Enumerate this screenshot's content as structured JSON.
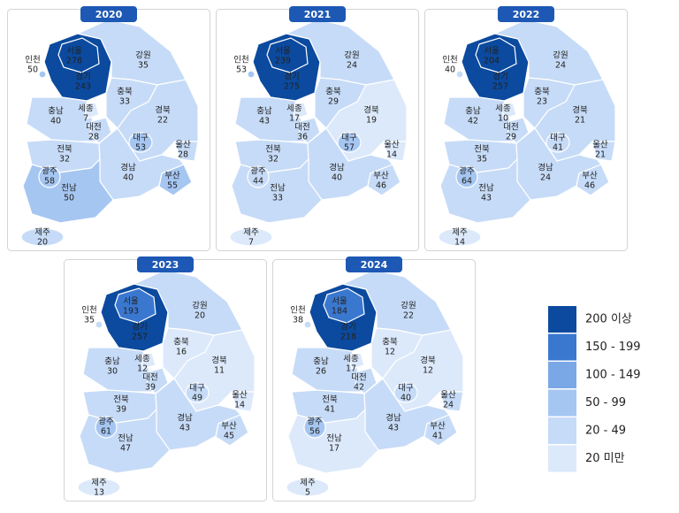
{
  "maps": [
    {
      "year": "2020",
      "regions": [
        {
          "name": "서울",
          "value": 278
        },
        {
          "name": "경기",
          "value": 243
        },
        {
          "name": "인천",
          "value": 50
        },
        {
          "name": "강원",
          "value": 35
        },
        {
          "name": "충북",
          "value": 33
        },
        {
          "name": "충남",
          "value": 40
        },
        {
          "name": "세종",
          "value": 7
        },
        {
          "name": "대전",
          "value": 28
        },
        {
          "name": "경북",
          "value": 22
        },
        {
          "name": "대구",
          "value": 53
        },
        {
          "name": "울산",
          "value": 28
        },
        {
          "name": "전북",
          "value": 32
        },
        {
          "name": "경남",
          "value": 40
        },
        {
          "name": "부산",
          "value": 55
        },
        {
          "name": "광주",
          "value": 58
        },
        {
          "name": "전남",
          "value": 50
        },
        {
          "name": "제주",
          "value": 20
        }
      ]
    },
    {
      "year": "2021",
      "regions": [
        {
          "name": "서울",
          "value": 239
        },
        {
          "name": "경기",
          "value": 275
        },
        {
          "name": "인천",
          "value": 53
        },
        {
          "name": "강원",
          "value": 24
        },
        {
          "name": "충북",
          "value": 29
        },
        {
          "name": "충남",
          "value": 43
        },
        {
          "name": "세종",
          "value": 17
        },
        {
          "name": "대전",
          "value": 36
        },
        {
          "name": "경북",
          "value": 19
        },
        {
          "name": "대구",
          "value": 57
        },
        {
          "name": "울산",
          "value": 14
        },
        {
          "name": "전북",
          "value": 32
        },
        {
          "name": "경남",
          "value": 40
        },
        {
          "name": "부산",
          "value": 46
        },
        {
          "name": "광주",
          "value": 44
        },
        {
          "name": "전남",
          "value": 33
        },
        {
          "name": "제주",
          "value": 7
        }
      ]
    },
    {
      "year": "2022",
      "regions": [
        {
          "name": "서울",
          "value": 204
        },
        {
          "name": "경기",
          "value": 257
        },
        {
          "name": "인천",
          "value": 40
        },
        {
          "name": "강원",
          "value": 24
        },
        {
          "name": "충북",
          "value": 23
        },
        {
          "name": "충남",
          "value": 42
        },
        {
          "name": "세종",
          "value": 10
        },
        {
          "name": "대전",
          "value": 29
        },
        {
          "name": "경북",
          "value": 21
        },
        {
          "name": "대구",
          "value": 41
        },
        {
          "name": "울산",
          "value": 21
        },
        {
          "name": "전북",
          "value": 35
        },
        {
          "name": "경남",
          "value": 24
        },
        {
          "name": "부산",
          "value": 46
        },
        {
          "name": "광주",
          "value": 64
        },
        {
          "name": "전남",
          "value": 43
        },
        {
          "name": "제주",
          "value": 14
        }
      ]
    },
    {
      "year": "2023",
      "regions": [
        {
          "name": "서울",
          "value": 193
        },
        {
          "name": "경기",
          "value": 257
        },
        {
          "name": "인천",
          "value": 35
        },
        {
          "name": "강원",
          "value": 20
        },
        {
          "name": "충북",
          "value": 16
        },
        {
          "name": "충남",
          "value": 30
        },
        {
          "name": "세종",
          "value": 12
        },
        {
          "name": "대전",
          "value": 39
        },
        {
          "name": "경북",
          "value": 11
        },
        {
          "name": "대구",
          "value": 49
        },
        {
          "name": "울산",
          "value": 14
        },
        {
          "name": "전북",
          "value": 39
        },
        {
          "name": "경남",
          "value": 43
        },
        {
          "name": "부산",
          "value": 45
        },
        {
          "name": "광주",
          "value": 61
        },
        {
          "name": "전남",
          "value": 47
        },
        {
          "name": "제주",
          "value": 13
        }
      ]
    },
    {
      "year": "2024",
      "regions": [
        {
          "name": "서울",
          "value": 184
        },
        {
          "name": "경기",
          "value": 218
        },
        {
          "name": "인천",
          "value": 38
        },
        {
          "name": "강원",
          "value": 22
        },
        {
          "name": "충북",
          "value": 12
        },
        {
          "name": "충남",
          "value": 26
        },
        {
          "name": "세종",
          "value": 17
        },
        {
          "name": "대전",
          "value": 42
        },
        {
          "name": "경북",
          "value": 12
        },
        {
          "name": "대구",
          "value": 40
        },
        {
          "name": "울산",
          "value": 24
        },
        {
          "name": "전북",
          "value": 41
        },
        {
          "name": "경남",
          "value": 43
        },
        {
          "name": "부산",
          "value": 41
        },
        {
          "name": "광주",
          "value": 56
        },
        {
          "name": "전남",
          "value": 17
        },
        {
          "name": "제주",
          "value": 5
        }
      ]
    }
  ],
  "legend": [
    {
      "label": "200 이상",
      "color": "#0b4a9e"
    },
    {
      "label": "150 - 199",
      "color": "#3a78d0"
    },
    {
      "label": "100 - 149",
      "color": "#7aa7e6"
    },
    {
      "label": "50 - 99",
      "color": "#a6c6f2"
    },
    {
      "label": "20 - 49",
      "color": "#c6dbf7"
    },
    {
      "label": "20 미만",
      "color": "#dce9fb"
    }
  ]
}
